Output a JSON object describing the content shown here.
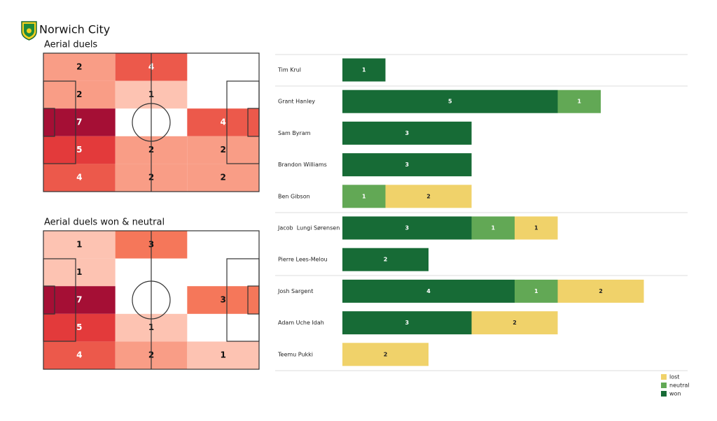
{
  "header": {
    "title": "Norwich City"
  },
  "chart_data": [
    {
      "type": "heatmap",
      "title": "Aerial duels",
      "values": [
        [
          2,
          4,
          null
        ],
        [
          2,
          1,
          null
        ],
        [
          7,
          null,
          4
        ],
        [
          5,
          2,
          2
        ],
        [
          4,
          2,
          2
        ]
      ],
      "colors": [
        "#fdc3b2",
        "#f5775a",
        "#e33a3b",
        "#a50f35"
      ]
    },
    {
      "type": "heatmap",
      "title": "Aerial duels won & neutral",
      "values": [
        [
          1,
          3,
          null
        ],
        [
          1,
          null,
          null
        ],
        [
          7,
          null,
          3
        ],
        [
          5,
          1,
          null
        ],
        [
          4,
          2,
          1
        ]
      ],
      "colors": [
        "#fdc3b2",
        "#f5775a",
        "#e33a3b",
        "#a50f35"
      ]
    },
    {
      "type": "bar",
      "orientation": "horizontal",
      "stacked": true,
      "legend": "lower right",
      "categories": [
        "Tim Krul",
        "Grant Hanley",
        "Sam Byram",
        "Brandon Williams",
        "Ben Gibson",
        "Jacob  Lungi Sørensen",
        "Pierre Lees-Melou",
        "Josh Sargent",
        "Adam Uche Idah",
        "Teemu Pukki"
      ],
      "series": [
        {
          "name": "won",
          "color": "#176b36",
          "values": [
            1,
            5,
            3,
            3,
            null,
            3,
            2,
            4,
            3,
            null
          ]
        },
        {
          "name": "neutral",
          "color": "#62a855",
          "values": [
            null,
            1,
            null,
            null,
            1,
            1,
            null,
            1,
            null,
            null
          ]
        },
        {
          "name": "lost",
          "color": "#f0d26a",
          "values": [
            null,
            null,
            null,
            null,
            2,
            1,
            null,
            2,
            2,
            2
          ]
        }
      ]
    }
  ]
}
